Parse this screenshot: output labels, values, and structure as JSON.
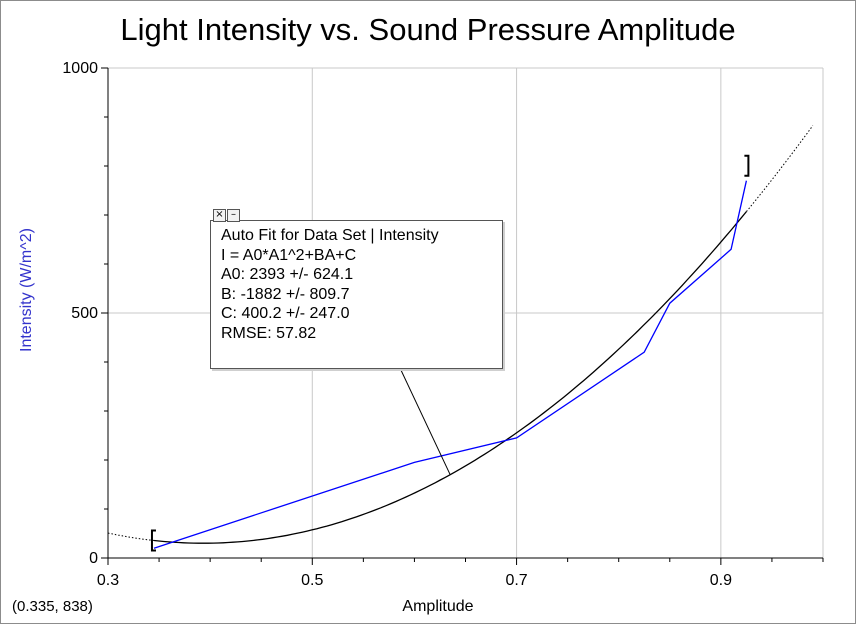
{
  "chart_data": {
    "type": "line",
    "title": "Light Intensity vs. Sound Pressure Amplitude",
    "xlabel": "Amplitude",
    "ylabel": "Intensity (W/m^2)",
    "xlim": [
      0.3,
      1.0
    ],
    "ylim": [
      0,
      1000
    ],
    "x_ticks": [
      "0.3",
      "0.5",
      "0.7",
      "0.9"
    ],
    "y_ticks": [
      "0",
      "500",
      "1000"
    ],
    "grid": true,
    "series": [
      {
        "color": "#0000ff",
        "x": [
          0.345,
          0.6,
          0.7,
          0.825,
          0.85,
          0.91,
          0.925
        ],
        "y": [
          20,
          195,
          245,
          420,
          520,
          630,
          770
        ]
      }
    ],
    "fit": {
      "color": "#000000",
      "A": 2393,
      "B": -1882,
      "C": 400.2,
      "x_range": [
        0.345,
        0.925
      ],
      "extrapolation_range": [
        0.3,
        0.99
      ]
    },
    "selection_brackets": {
      "x_start": 0.345,
      "x_end": 0.925
    }
  },
  "fit_box": {
    "lines": [
      "Auto Fit for  Data Set | Intensity",
      "I = A0*A1^2+BA+C",
      "A0: 2393 +/- 624.1",
      "B: -1882 +/- 809.7",
      "C: 400.2 +/- 247.0",
      "RMSE: 57.82"
    ],
    "close_symbol": "×",
    "minimize_symbol": "–",
    "pointer_target": [
      0.635,
      170
    ]
  },
  "coord_readout": "(0.335, 838)",
  "colors": {
    "ylabel": "#3333cc",
    "grid": "#c8c8c8",
    "data": "#0000ff",
    "fit": "#000000"
  }
}
